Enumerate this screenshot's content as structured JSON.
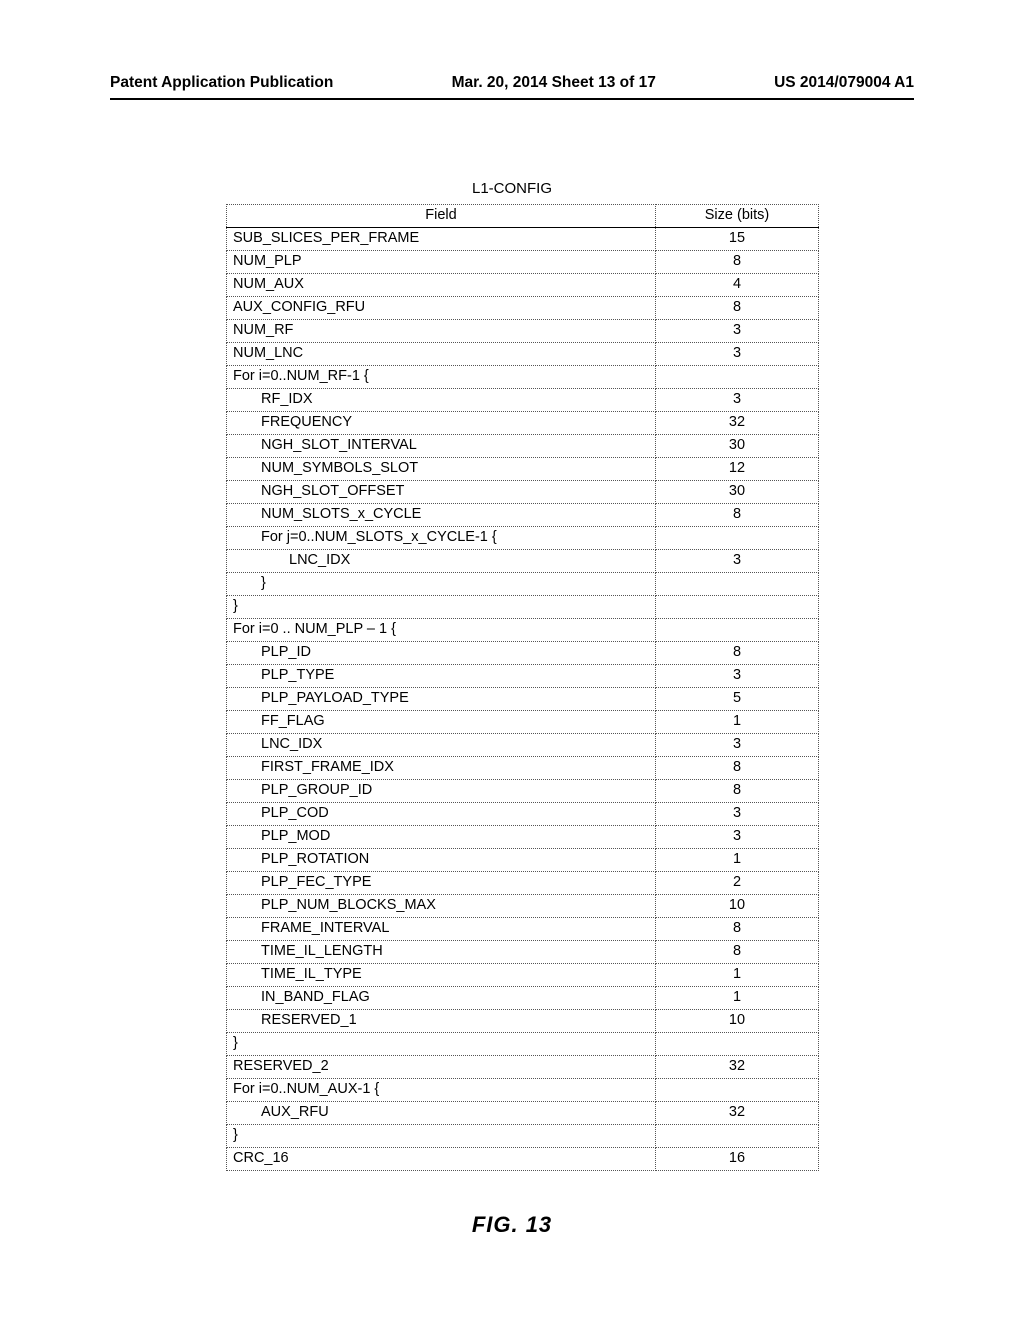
{
  "header": {
    "left": "Patent Application Publication",
    "center": "Mar. 20, 2014 Sheet 13 of 17",
    "right": "US 2014/079004 A1"
  },
  "table": {
    "title": "L1-CONFIG",
    "columns": {
      "field": "Field",
      "size": "Size (bits)"
    },
    "rows": [
      {
        "field": "SUB_SLICES_PER_FRAME",
        "size": "15",
        "indent": 0
      },
      {
        "field": "NUM_PLP",
        "size": "8",
        "indent": 0
      },
      {
        "field": "NUM_AUX",
        "size": "4",
        "indent": 0
      },
      {
        "field": "AUX_CONFIG_RFU",
        "size": "8",
        "indent": 0
      },
      {
        "field": "NUM_RF",
        "size": "3",
        "indent": 0
      },
      {
        "field": "NUM_LNC",
        "size": "3",
        "indent": 0
      },
      {
        "field": "For i=0..NUM_RF-1 {",
        "size": "",
        "indent": 0
      },
      {
        "field": "RF_IDX",
        "size": "3",
        "indent": 1
      },
      {
        "field": "FREQUENCY",
        "size": "32",
        "indent": 1
      },
      {
        "field": "NGH_SLOT_INTERVAL",
        "size": "30",
        "indent": 1
      },
      {
        "field": "NUM_SYMBOLS_SLOT",
        "size": "12",
        "indent": 1
      },
      {
        "field": "NGH_SLOT_OFFSET",
        "size": "30",
        "indent": 1
      },
      {
        "field": "NUM_SLOTS_x_CYCLE",
        "size": "8",
        "indent": 1
      },
      {
        "field": "For j=0..NUM_SLOTS_x_CYCLE-1 {",
        "size": "",
        "indent": 1
      },
      {
        "field": "LNC_IDX",
        "size": "3",
        "indent": 2
      },
      {
        "field": "}",
        "size": "",
        "indent": 1
      },
      {
        "field": "}",
        "size": "",
        "indent": 0
      },
      {
        "field": "For i=0 .. NUM_PLP – 1 {",
        "size": "",
        "indent": 0
      },
      {
        "field": "PLP_ID",
        "size": "8",
        "indent": 1
      },
      {
        "field": "PLP_TYPE",
        "size": "3",
        "indent": 1
      },
      {
        "field": "PLP_PAYLOAD_TYPE",
        "size": "5",
        "indent": 1
      },
      {
        "field": "FF_FLAG",
        "size": "1",
        "indent": 1
      },
      {
        "field": "LNC_IDX",
        "size": "3",
        "indent": 1
      },
      {
        "field": "FIRST_FRAME_IDX",
        "size": "8",
        "indent": 1
      },
      {
        "field": "PLP_GROUP_ID",
        "size": "8",
        "indent": 1
      },
      {
        "field": "PLP_COD",
        "size": "3",
        "indent": 1
      },
      {
        "field": "PLP_MOD",
        "size": "3",
        "indent": 1
      },
      {
        "field": "PLP_ROTATION",
        "size": "1",
        "indent": 1
      },
      {
        "field": "PLP_FEC_TYPE",
        "size": "2",
        "indent": 1
      },
      {
        "field": "PLP_NUM_BLOCKS_MAX",
        "size": "10",
        "indent": 1
      },
      {
        "field": "FRAME_INTERVAL",
        "size": "8",
        "indent": 1
      },
      {
        "field": "TIME_IL_LENGTH",
        "size": "8",
        "indent": 1
      },
      {
        "field": "TIME_IL_TYPE",
        "size": "1",
        "indent": 1
      },
      {
        "field": "IN_BAND_FLAG",
        "size": "1",
        "indent": 1
      },
      {
        "field": "RESERVED_1",
        "size": "10",
        "indent": 1
      },
      {
        "field": "}",
        "size": "",
        "indent": 0
      },
      {
        "field": "RESERVED_2",
        "size": "32",
        "indent": 0
      },
      {
        "field": "For i=0..NUM_AUX-1 {",
        "size": "",
        "indent": 0
      },
      {
        "field": "AUX_RFU",
        "size": "32",
        "indent": 1
      },
      {
        "field": "}",
        "size": "",
        "indent": 0
      },
      {
        "field": "CRC_16",
        "size": "16",
        "indent": 0
      }
    ]
  },
  "figure_caption": "FIG. 13"
}
